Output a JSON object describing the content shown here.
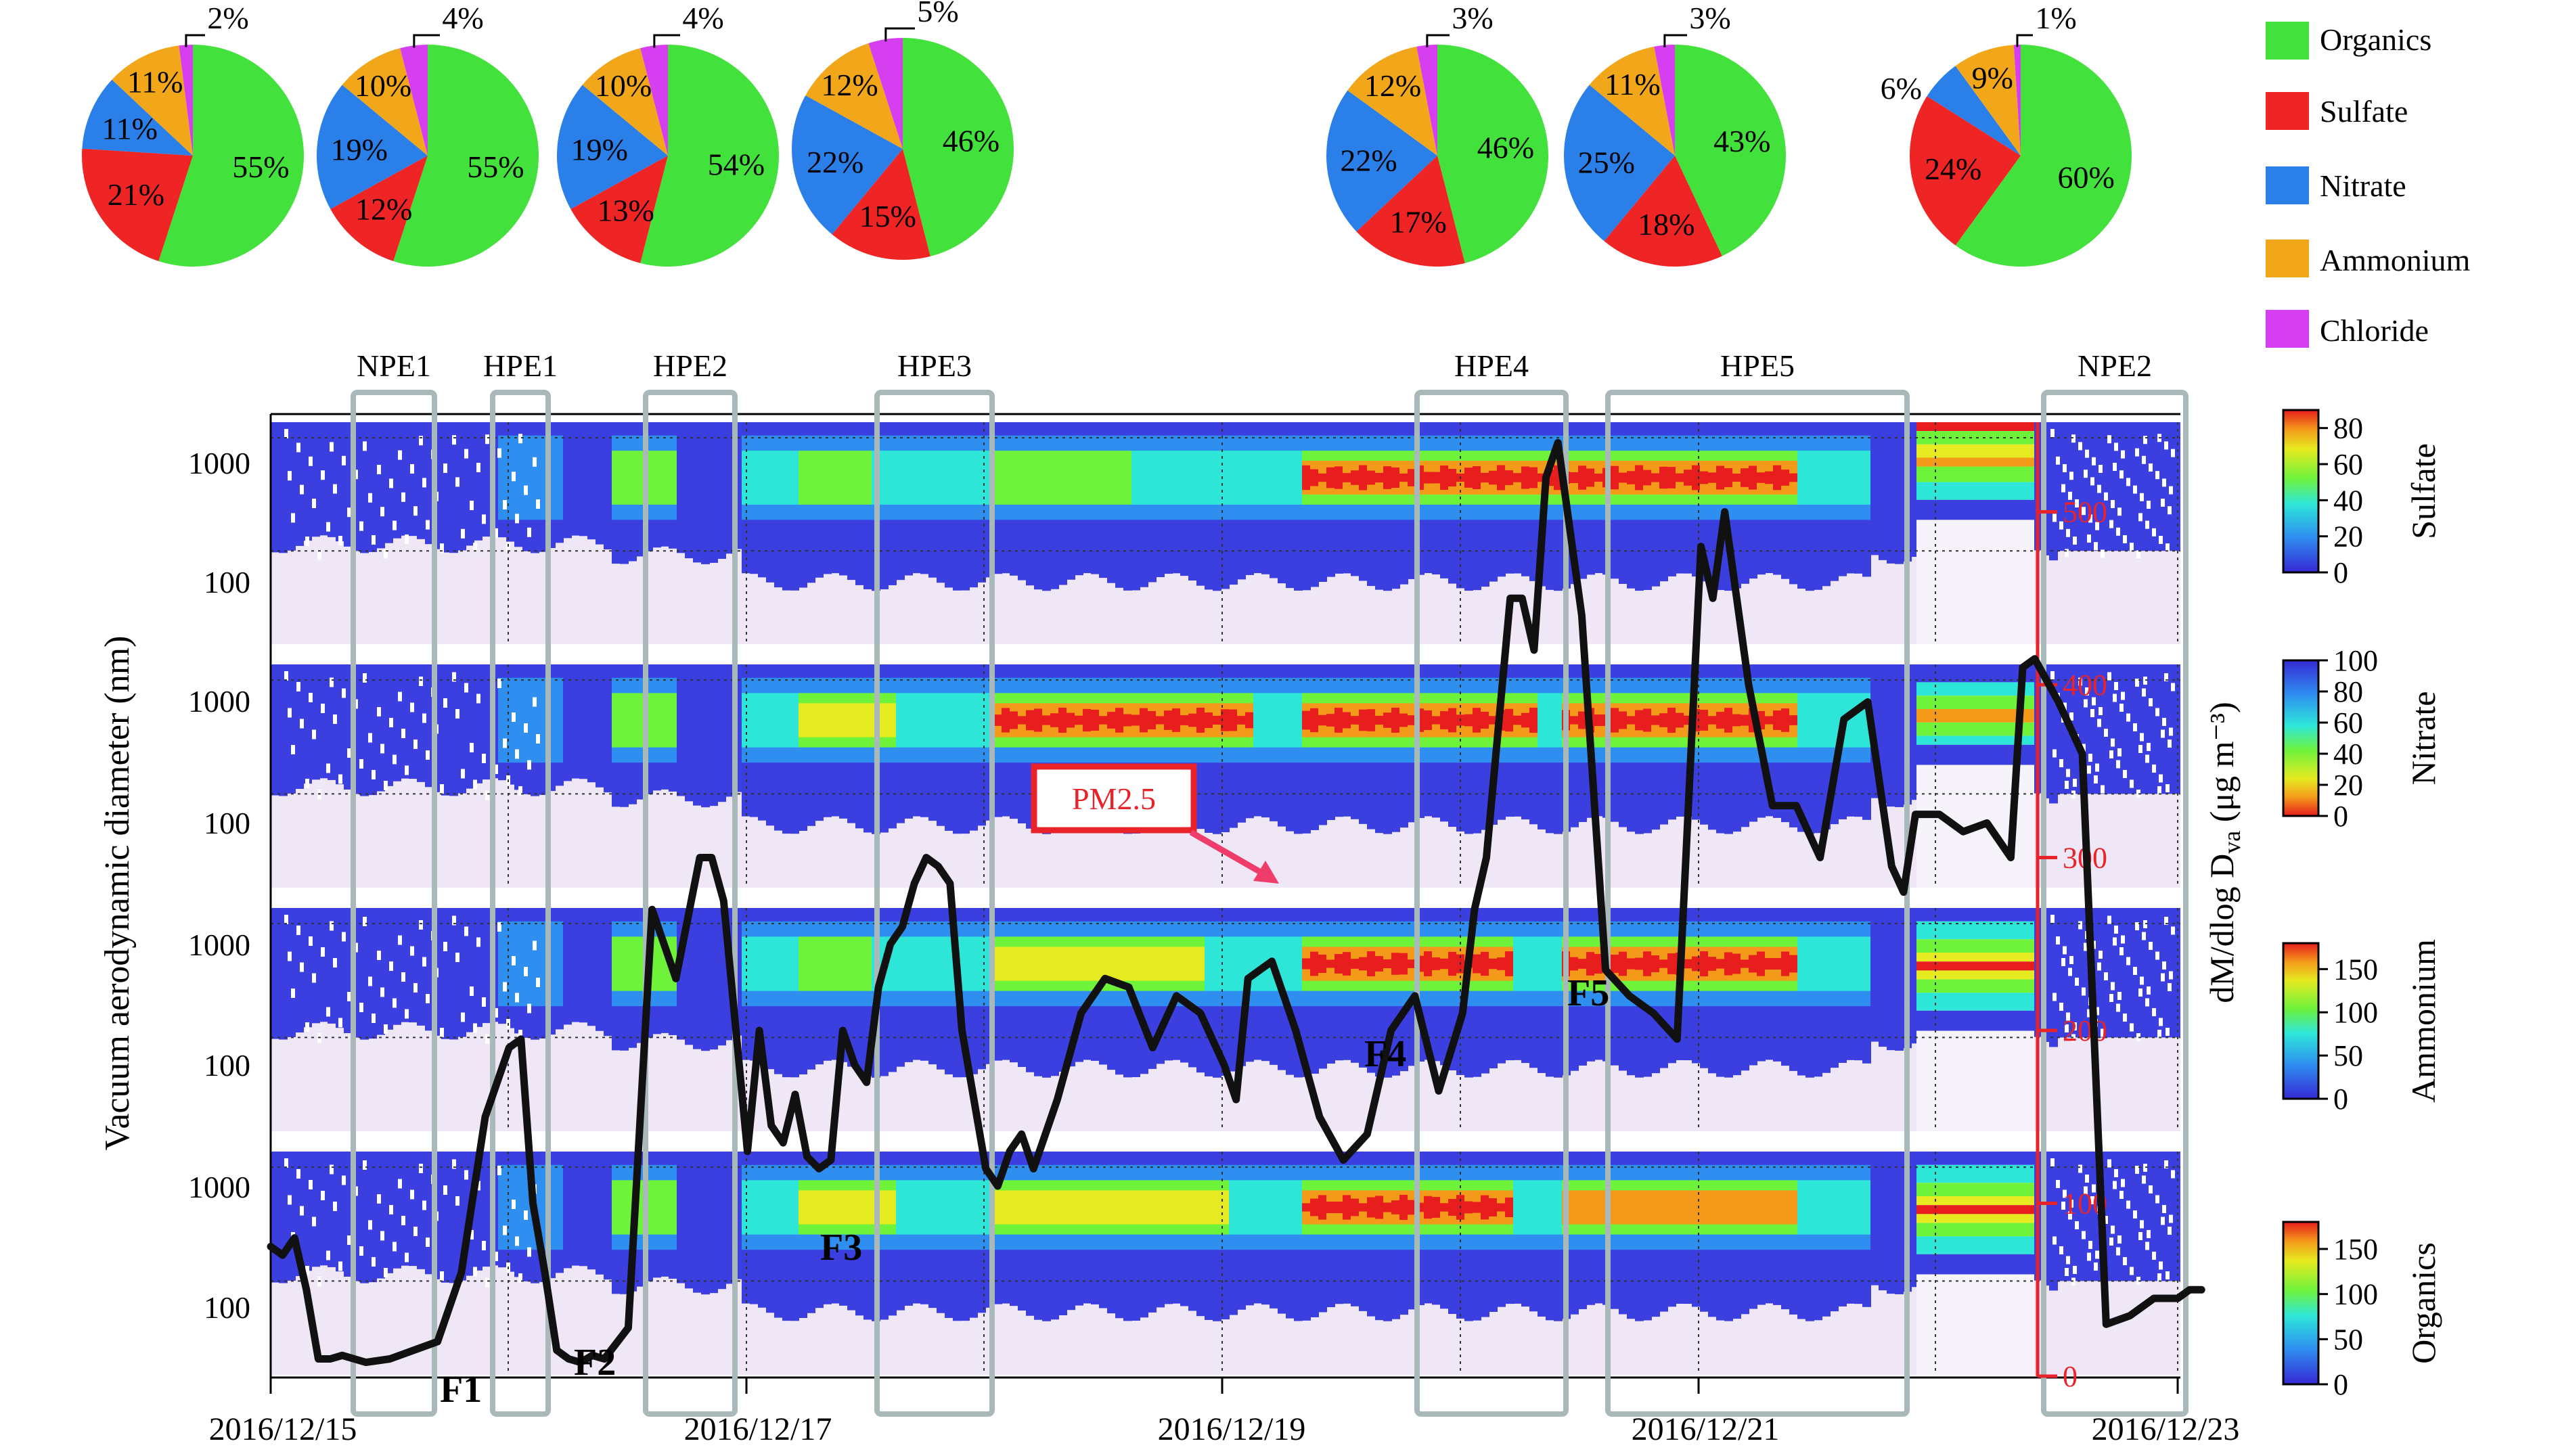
{
  "colors": {
    "organics": "#43e13b",
    "sulfate": "#ee2524",
    "nitrate": "#2a7fe8",
    "ammonium": "#f2a71b",
    "chloride": "#d63ff0",
    "episode_box": "#a9b8b8",
    "pm25_line": "#111111",
    "pm25_axis": "#e8232a"
  },
  "chart_data": [
    {
      "type": "pie",
      "title": "",
      "categories": [
        "Organics",
        "Sulfate",
        "Nitrate",
        "Ammonium",
        "Chloride"
      ],
      "pies": [
        {
          "values": [
            55,
            21,
            11,
            11,
            2
          ],
          "labels": [
            "55%",
            "21%",
            "11%",
            "11%",
            "2%"
          ]
        },
        {
          "values": [
            55,
            12,
            19,
            10,
            4
          ],
          "labels": [
            "55%",
            "12%",
            "19%",
            "10%",
            "4%"
          ]
        },
        {
          "values": [
            54,
            13,
            19,
            10,
            4
          ],
          "labels": [
            "54%",
            "13%",
            "19%",
            "10%",
            "4%"
          ]
        },
        {
          "values": [
            46,
            15,
            22,
            12,
            5
          ],
          "labels": [
            "46%",
            "15%",
            "22%",
            "12%",
            "5%"
          ]
        },
        {
          "values": [
            46,
            17,
            22,
            12,
            3
          ],
          "labels": [
            "46%",
            "17%",
            "22%",
            "12%",
            "3%"
          ]
        },
        {
          "values": [
            43,
            18,
            25,
            11,
            3
          ],
          "labels": [
            "43%",
            "18%",
            "25%",
            "11%",
            "3%"
          ]
        },
        {
          "values": [
            60,
            24,
            6,
            9,
            1
          ],
          "labels": [
            "60%",
            "24%",
            "6%",
            "9%",
            "1%"
          ]
        }
      ],
      "legend": [
        "Organics",
        "Sulfate",
        "Nitrate",
        "Ammonium",
        "Chloride"
      ]
    },
    {
      "type": "heatmap",
      "ylabel": "Vacuum aerodynamic diameter (nm)",
      "yscale": "log",
      "y_ticks": [
        "1000",
        "100"
      ],
      "x_ticks": [
        "2016/12/15",
        "2016/12/17",
        "2016/12/19",
        "2016/12/21",
        "2016/12/23"
      ],
      "panels": [
        {
          "name": "Sulfate",
          "colorbar_ticks": [
            "80",
            "60",
            "40",
            "20",
            "0"
          ],
          "colorbar_range": [
            0,
            90
          ]
        },
        {
          "name": "Nitrate",
          "colorbar_ticks": [
            "100",
            "80",
            "60",
            "40",
            "20",
            "0"
          ],
          "colorbar_range": [
            0,
            100
          ]
        },
        {
          "name": "Ammonium",
          "colorbar_ticks": [
            "150",
            "100",
            "50",
            "0"
          ],
          "colorbar_range": [
            0,
            180
          ]
        },
        {
          "name": "Organics",
          "colorbar_ticks": [
            "150",
            "100",
            "50",
            "0"
          ],
          "colorbar_range": [
            0,
            180
          ]
        }
      ],
      "colorbar_title": "dM/dlog Dva (μg m⁻³)",
      "episodes": [
        "NPE1",
        "HPE1",
        "HPE2",
        "HPE3",
        "HPE4",
        "HPE5",
        "NPE2"
      ]
    },
    {
      "type": "line",
      "series": [
        {
          "name": "PM2.5"
        }
      ],
      "y2_ticks": [
        "500",
        "400",
        "300",
        "200",
        "100",
        "0"
      ],
      "ylim": [
        0,
        550
      ],
      "x_days": [
        0,
        0.05,
        0.1,
        0.15,
        0.2,
        0.25,
        0.3,
        0.4,
        0.5,
        0.6,
        0.7,
        0.8,
        0.9,
        1.0,
        1.05,
        1.1,
        1.15,
        1.2,
        1.25,
        1.3,
        1.35,
        1.4,
        1.5,
        1.6,
        1.7,
        1.8,
        1.85,
        1.9,
        2.0,
        2.05,
        2.1,
        2.15,
        2.2,
        2.25,
        2.3,
        2.35,
        2.4,
        2.45,
        2.5,
        2.55,
        2.6,
        2.65,
        2.7,
        2.75,
        2.8,
        2.85,
        2.9,
        3.0,
        3.05,
        3.1,
        3.15,
        3.2,
        3.25,
        3.3,
        3.4,
        3.5,
        3.6,
        3.7,
        3.8,
        3.9,
        4.0,
        4.05,
        4.1,
        4.2,
        4.3,
        4.4,
        4.5,
        4.6,
        4.7,
        4.8,
        4.9,
        5.0,
        5.05,
        5.1,
        5.2,
        5.25,
        5.3,
        5.35,
        5.4,
        5.5,
        5.6,
        5.7,
        5.8,
        5.9,
        6.0,
        6.05,
        6.1,
        6.2,
        6.3,
        6.4,
        6.5,
        6.6,
        6.7,
        6.8,
        6.85,
        6.9,
        7.0,
        7.1,
        7.2,
        7.3,
        7.35,
        7.4,
        7.5,
        7.6,
        7.7,
        7.8,
        7.9,
        8.0,
        8.05,
        8.1
      ],
      "values": [
        75,
        70,
        80,
        50,
        10,
        10,
        12,
        8,
        10,
        15,
        20,
        60,
        150,
        190,
        195,
        100,
        60,
        15,
        10,
        8,
        12,
        10,
        28,
        270,
        230,
        300,
        300,
        275,
        130,
        200,
        145,
        135,
        163,
        127,
        120,
        125,
        200,
        180,
        170,
        225,
        250,
        260,
        285,
        300,
        295,
        285,
        200,
        120,
        110,
        130,
        140,
        120,
        140,
        160,
        210,
        230,
        225,
        190,
        220,
        210,
        180,
        160,
        230,
        240,
        200,
        150,
        125,
        140,
        200,
        220,
        165,
        210,
        270,
        300,
        450,
        450,
        420,
        520,
        540,
        440,
        235,
        220,
        210,
        195,
        480,
        450,
        500,
        400,
        330,
        330,
        300,
        380,
        390,
        295,
        280,
        325,
        325,
        315,
        320,
        300,
        410,
        415,
        390,
        360,
        30,
        35,
        45,
        45,
        50,
        50
      ]
    }
  ],
  "pm25_label": "PM2.5",
  "f_labels": [
    "F1",
    "F2",
    "F3",
    "F4",
    "F5"
  ]
}
